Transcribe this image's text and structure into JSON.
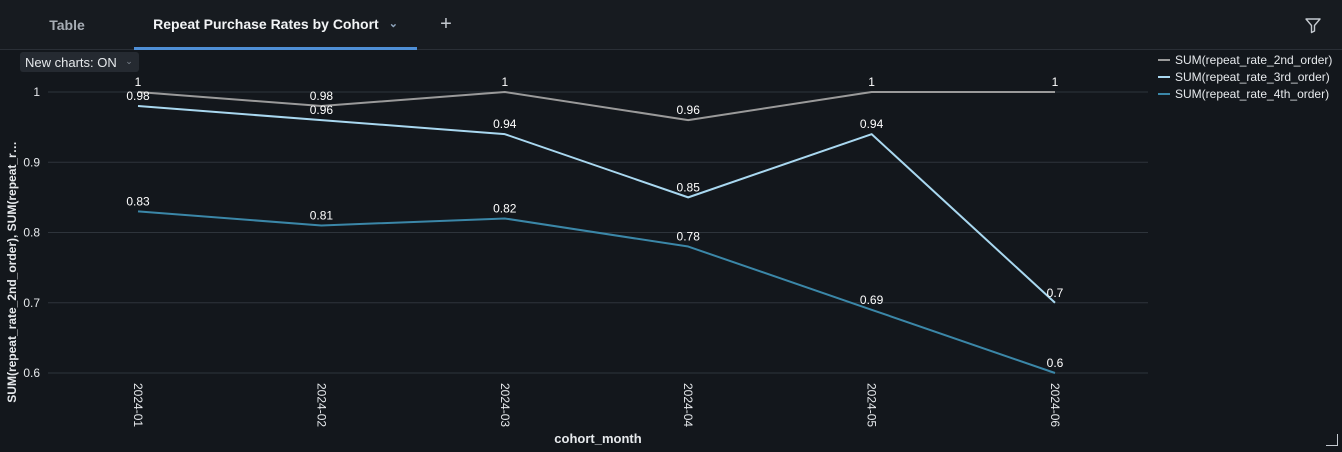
{
  "tabs": {
    "table_label": "Table",
    "active_label": "Repeat Purchase Rates by Cohort",
    "add_label": "+"
  },
  "toolbar": {
    "new_charts_label": "New charts: ON",
    "filter_icon": "filter-icon"
  },
  "colors": {
    "background": "#13171c",
    "grid": "#2e343b",
    "text": "#e6e9ec",
    "series_2nd": "#9a9a9a",
    "series_3rd": "#a9d8f0",
    "series_4th": "#3b87a8"
  },
  "chart_data": {
    "type": "line",
    "xlabel": "cohort_month",
    "ylabel": "SUM(repeat_rate_2nd_order), SUM(repeat_r…",
    "categories": [
      "2024-01",
      "2024-02",
      "2024-03",
      "2024-04",
      "2024-05",
      "2024-06"
    ],
    "ylim": [
      0.6,
      1.02
    ],
    "yticks": [
      0.6,
      0.7,
      0.8,
      0.9,
      1
    ],
    "ytick_labels": [
      "0.6",
      "0.7",
      "0.8",
      "0.9",
      "1"
    ],
    "grid": true,
    "legend_position": "top-right",
    "series": [
      {
        "name": "SUM(repeat_rate_2nd_order)",
        "color": "#9a9a9a",
        "values": [
          1,
          0.98,
          1,
          0.96,
          1,
          1
        ],
        "labels": [
          "1",
          "0.98",
          "1",
          "0.96",
          "1",
          "1"
        ]
      },
      {
        "name": "SUM(repeat_rate_3rd_order)",
        "color": "#a9d8f0",
        "values": [
          0.98,
          0.96,
          0.94,
          0.85,
          0.94,
          0.7
        ],
        "labels": [
          "0.98",
          "0.96",
          "0.94",
          "0.85",
          "0.94",
          "0.7"
        ]
      },
      {
        "name": "SUM(repeat_rate_4th_order)",
        "color": "#3b87a8",
        "values": [
          0.83,
          0.81,
          0.82,
          0.78,
          0.69,
          0.6
        ],
        "labels": [
          "0.83",
          "0.81",
          "0.82",
          "0.78",
          "0.69",
          "0.6"
        ]
      }
    ]
  }
}
